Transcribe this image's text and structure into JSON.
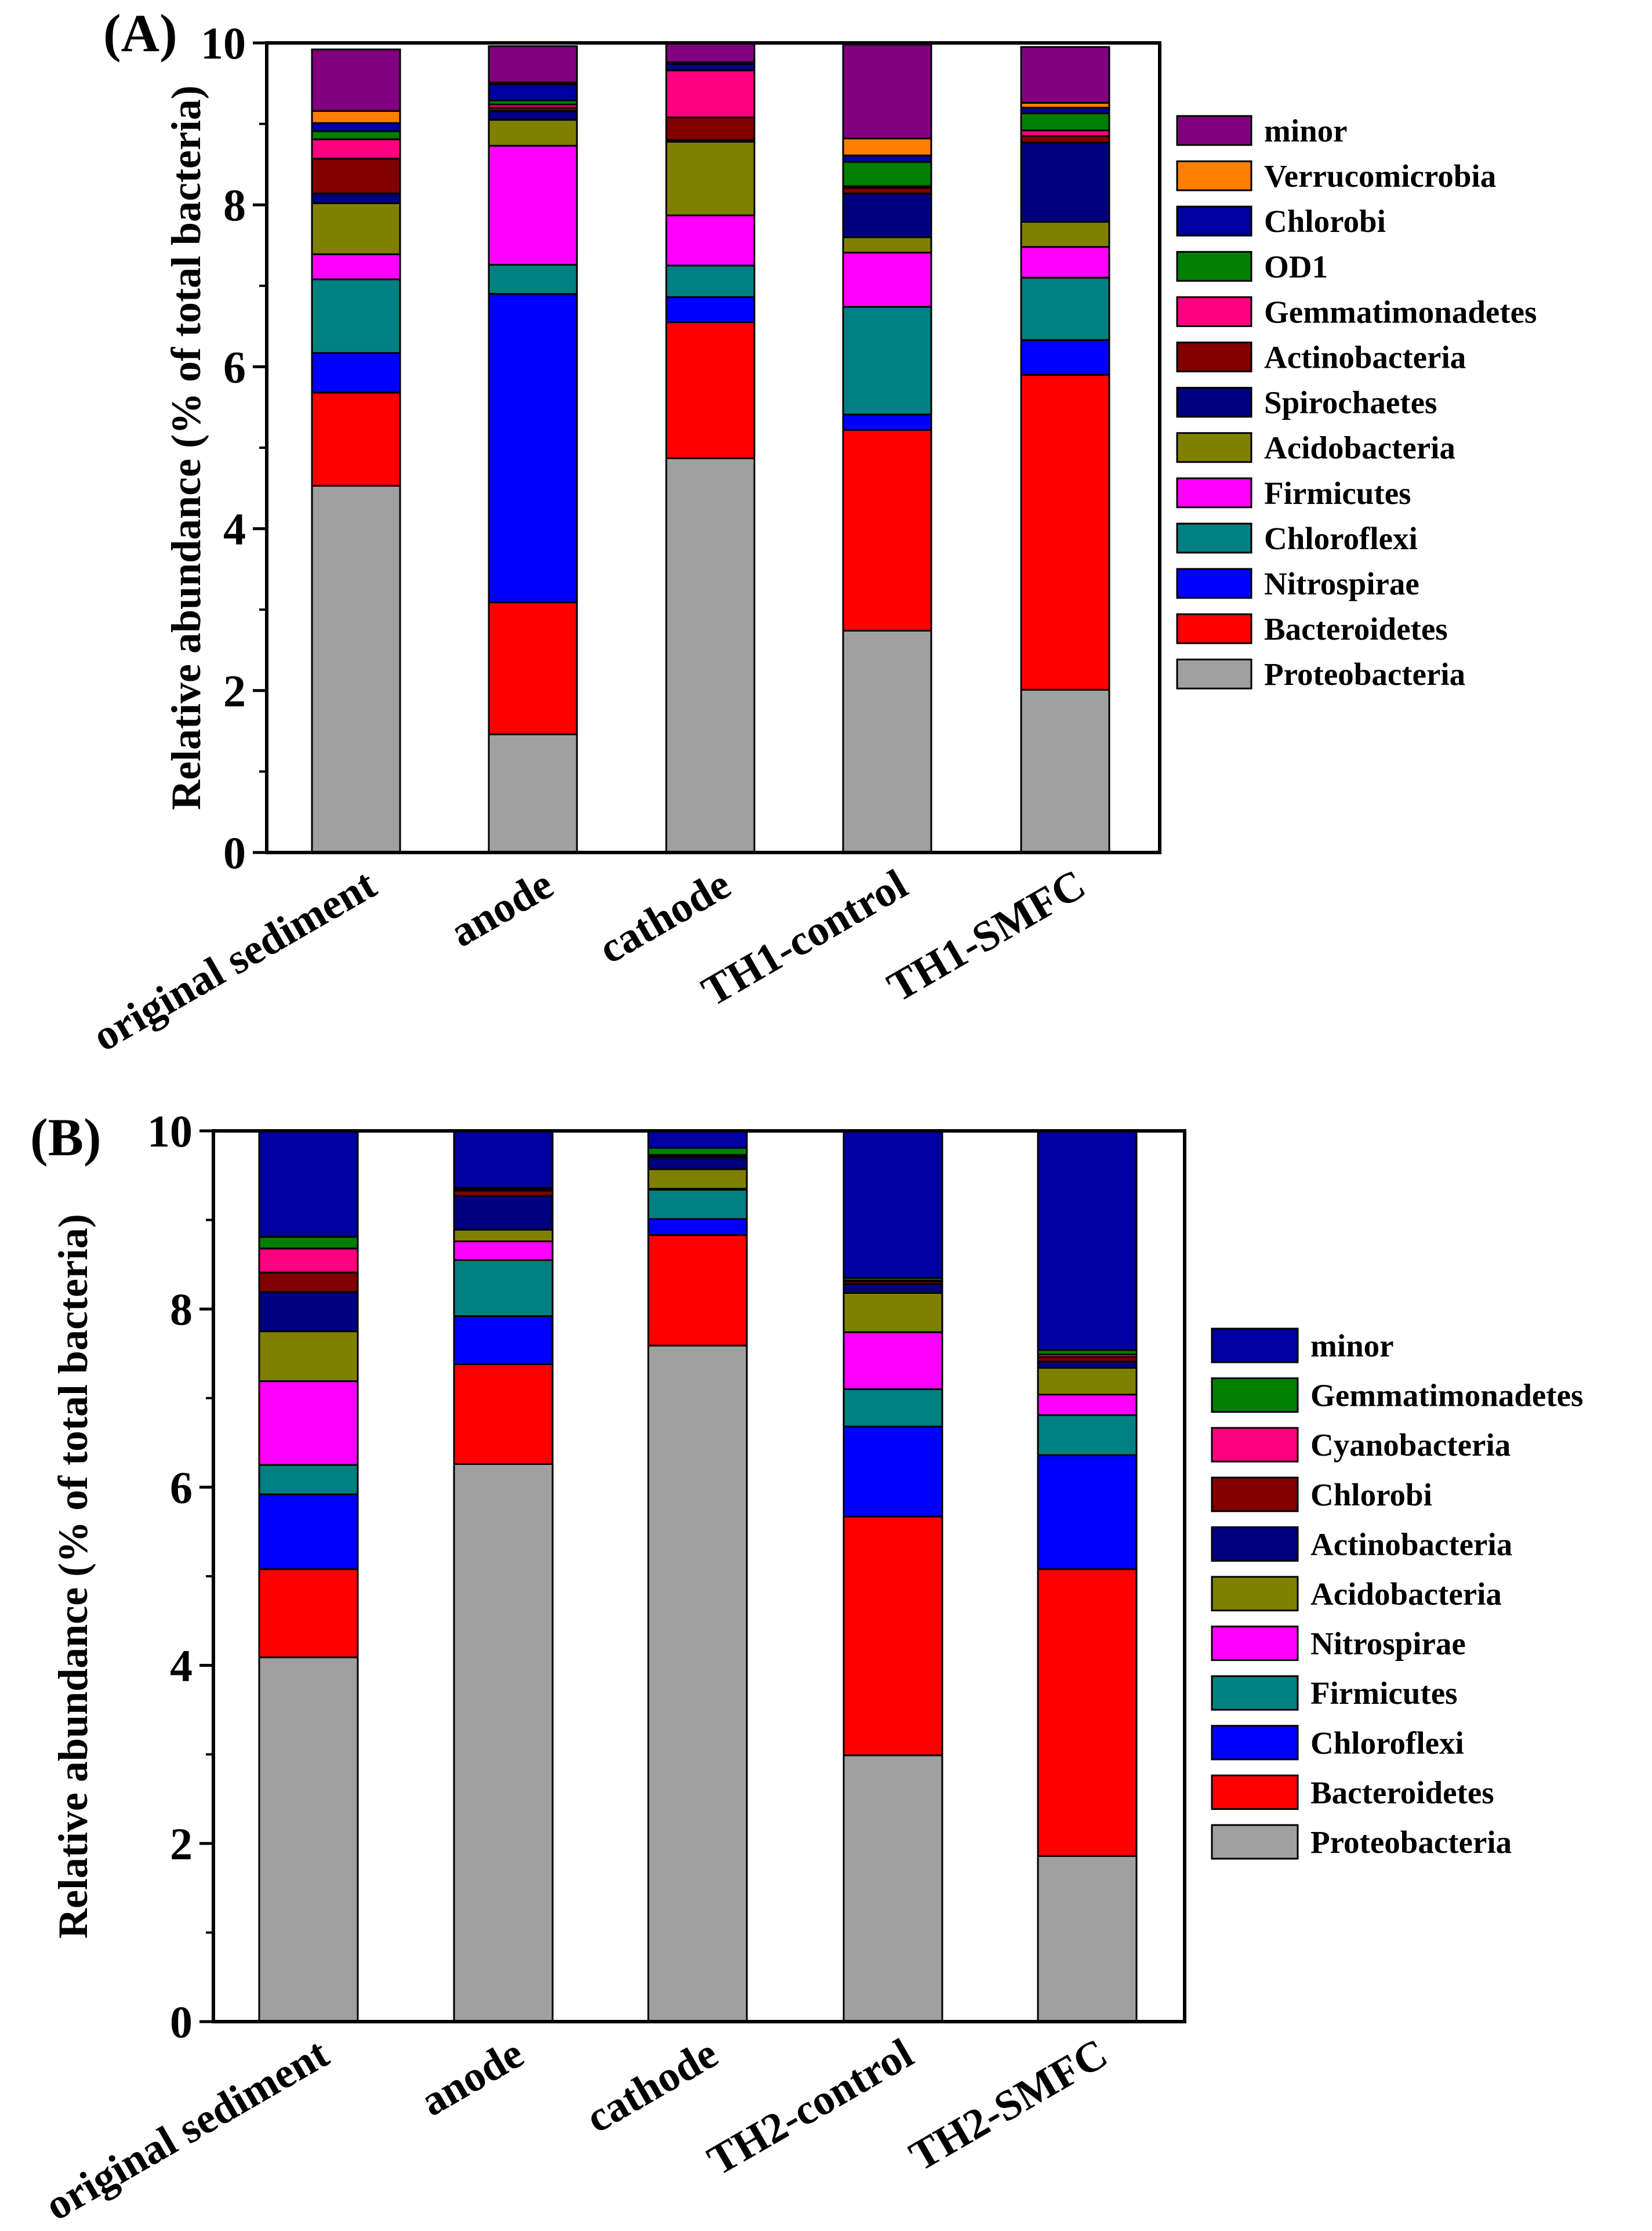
{
  "chart_data": [
    {
      "type": "bar",
      "stacked": true,
      "panel_label": "(A)",
      "title": "",
      "xlabel": "",
      "ylabel": "Relative abundance (% of total bacteria)",
      "ylim": [
        0,
        10
      ],
      "yticks": [
        "0",
        "2",
        "4",
        "6",
        "8",
        "10"
      ],
      "categories": [
        "original sediment",
        "anode",
        "cathode",
        "TH1-control",
        "TH1-SMFC"
      ],
      "legend_position": "right",
      "series": [
        {
          "name": "Proteobacteria",
          "color": "#a0a0a0",
          "values": [
            4.53,
            1.46,
            4.87,
            2.74,
            2.01
          ]
        },
        {
          "name": "Bacteroidetes",
          "color": "#ff0000",
          "values": [
            1.15,
            1.63,
            1.68,
            2.48,
            3.89
          ]
        },
        {
          "name": "Nitrospirae",
          "color": "#0000ff",
          "values": [
            0.49,
            3.81,
            0.31,
            0.19,
            0.43
          ]
        },
        {
          "name": "Chloroflexi",
          "color": "#008080",
          "values": [
            0.91,
            0.36,
            0.39,
            1.33,
            0.77
          ]
        },
        {
          "name": "Firmicutes",
          "color": "#ff00ff",
          "values": [
            0.31,
            1.47,
            0.62,
            0.67,
            0.38
          ]
        },
        {
          "name": "Acidobacteria",
          "color": "#808000",
          "values": [
            0.63,
            0.32,
            0.91,
            0.19,
            0.31
          ]
        },
        {
          "name": "Spirochaetes",
          "color": "#000080",
          "values": [
            0.12,
            0.11,
            0.02,
            0.54,
            0.98
          ]
        },
        {
          "name": "Actinobacteria",
          "color": "#800000",
          "values": [
            0.43,
            0.04,
            0.28,
            0.07,
            0.08
          ]
        },
        {
          "name": "Gemmatimonadetes",
          "color": "#ff0080",
          "values": [
            0.24,
            0.04,
            0.58,
            0.02,
            0.07
          ]
        },
        {
          "name": "OD1",
          "color": "#008000",
          "values": [
            0.1,
            0.05,
            0.01,
            0.3,
            0.21
          ]
        },
        {
          "name": "Chlorobi",
          "color": "#0000a0",
          "values": [
            0.1,
            0.2,
            0.07,
            0.08,
            0.07
          ]
        },
        {
          "name": "Verrucomicrobia",
          "color": "#ff8000",
          "values": [
            0.15,
            0.02,
            0.02,
            0.21,
            0.06
          ]
        },
        {
          "name": "minor",
          "color": "#800080",
          "values": [
            0.76,
            0.45,
            0.24,
            1.16,
            0.69
          ]
        }
      ]
    },
    {
      "type": "bar",
      "stacked": true,
      "panel_label": "(B)",
      "title": "",
      "xlabel": "",
      "ylabel": "Relative abundance (% of total bacteria)",
      "ylim": [
        0,
        10
      ],
      "yticks": [
        "0",
        "2",
        "4",
        "6",
        "8",
        "10"
      ],
      "categories": [
        "original sediment",
        "anode",
        "cathode",
        "TH2-control",
        "TH2-SMFC"
      ],
      "legend_position": "right",
      "series": [
        {
          "name": "Proteobacteria",
          "color": "#a0a0a0",
          "values": [
            4.09,
            6.26,
            7.59,
            2.99,
            1.86
          ]
        },
        {
          "name": "Bacteroidetes",
          "color": "#ff0000",
          "values": [
            0.99,
            1.12,
            1.24,
            2.68,
            3.22
          ]
        },
        {
          "name": "Chloroflexi",
          "color": "#0000ff",
          "values": [
            0.84,
            0.54,
            0.18,
            1.01,
            1.28
          ]
        },
        {
          "name": "Firmicutes",
          "color": "#008080",
          "values": [
            0.33,
            0.63,
            0.33,
            0.42,
            0.45
          ]
        },
        {
          "name": "Nitrospirae",
          "color": "#ff00ff",
          "values": [
            0.94,
            0.21,
            0.01,
            0.64,
            0.23
          ]
        },
        {
          "name": "Acidobacteria",
          "color": "#808000",
          "values": [
            0.56,
            0.13,
            0.22,
            0.44,
            0.3
          ]
        },
        {
          "name": "Actinobacteria",
          "color": "#000080",
          "values": [
            0.44,
            0.38,
            0.13,
            0.1,
            0.07
          ]
        },
        {
          "name": "Chlorobi",
          "color": "#800000",
          "values": [
            0.22,
            0.06,
            0.02,
            0.03,
            0.05
          ]
        },
        {
          "name": "Cyanobacteria",
          "color": "#ff0080",
          "values": [
            0.27,
            0.01,
            0.01,
            0.01,
            0.03
          ]
        },
        {
          "name": "Gemmatimonadetes",
          "color": "#008000",
          "values": [
            0.13,
            0.02,
            0.08,
            0.03,
            0.05
          ]
        },
        {
          "name": "minor",
          "color": "#0000a0",
          "values": [
            1.19,
            0.64,
            0.19,
            1.65,
            2.46
          ]
        }
      ]
    }
  ]
}
